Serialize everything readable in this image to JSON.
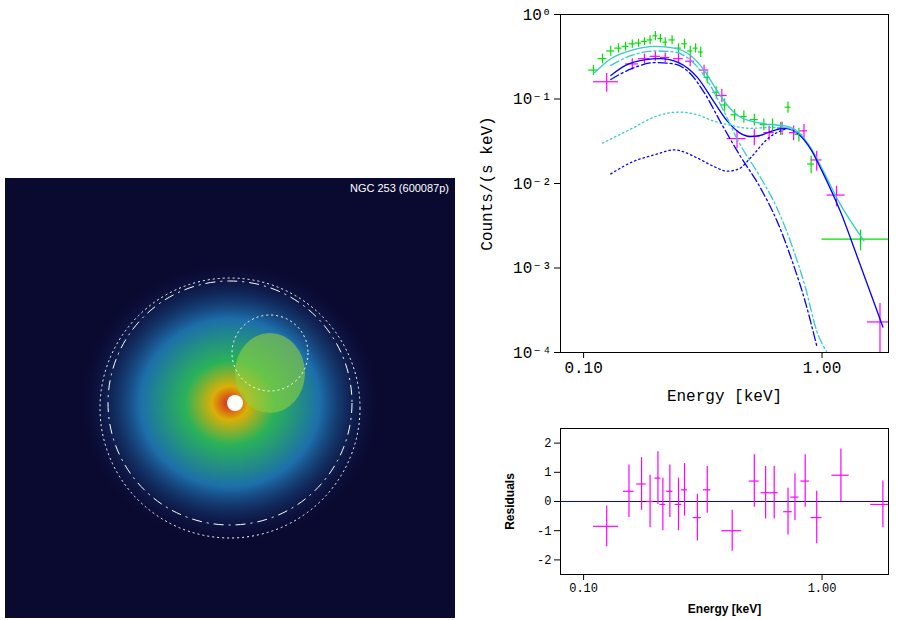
{
  "chart_data": [
    {
      "type": "image",
      "title": "NGC 253 (600087p)"
    },
    {
      "type": "line",
      "xlabel": "Energy [keV]",
      "ylabel": "Counts/(s keV)",
      "log": true,
      "xlim": [
        0.08,
        1.9
      ],
      "ylim": [
        0.0001,
        1
      ],
      "xticks": [
        {
          "value": 0.1,
          "label": "0.10"
        },
        {
          "value": 1,
          "label": "1.00"
        }
      ],
      "yticks": [
        {
          "value": 0.0001,
          "label": "10⁻⁴"
        },
        {
          "value": 0.001,
          "label": "10⁻³"
        },
        {
          "value": 0.01,
          "label": "10⁻²"
        },
        {
          "value": 0.1,
          "label": "10⁻¹"
        },
        {
          "value": 1,
          "label": "10⁰"
        }
      ],
      "series": [
        {
          "type": "scatter",
          "color": "#00e000",
          "x": [
            0.11,
            0.12,
            0.13,
            0.14,
            0.15,
            0.16,
            0.17,
            0.18,
            0.19,
            0.2,
            0.21,
            0.22,
            0.235,
            0.25,
            0.265,
            0.28,
            0.295,
            0.31,
            0.33,
            0.36,
            0.39,
            0.43,
            0.47,
            0.52,
            0.57,
            0.62,
            0.67,
            0.72,
            0.8,
            0.9,
            1.45
          ],
          "values": [
            0.22,
            0.3,
            0.37,
            0.4,
            0.42,
            0.45,
            0.46,
            0.48,
            0.5,
            0.56,
            0.52,
            0.47,
            0.5,
            0.4,
            0.45,
            0.37,
            0.4,
            0.36,
            0.18,
            0.12,
            0.085,
            0.065,
            0.062,
            0.057,
            0.05,
            0.05,
            0.045,
            0.08,
            0.038,
            0.017,
            0.0022
          ],
          "xerr": [
            0.005,
            0.005,
            0.005,
            0.005,
            0.005,
            0.005,
            0.005,
            0.005,
            0.005,
            0.005,
            0.005,
            0.005,
            0.007,
            0.007,
            0.007,
            0.007,
            0.007,
            0.007,
            0.01,
            0.012,
            0.012,
            0.015,
            0.015,
            0.02,
            0.02,
            0.02,
            0.02,
            0.02,
            0.03,
            0.03,
            0.45
          ],
          "yerr": [
            0.03,
            0.04,
            0.05,
            0.05,
            0.05,
            0.05,
            0.05,
            0.05,
            0.06,
            0.07,
            0.06,
            0.06,
            0.06,
            0.05,
            0.06,
            0.05,
            0.05,
            0.05,
            0.03,
            0.02,
            0.015,
            0.01,
            0.01,
            0.009,
            0.008,
            0.008,
            0.008,
            0.012,
            0.007,
            0.004,
            0.0006
          ]
        },
        {
          "type": "scatter",
          "color": "#ff00ff",
          "x": [
            0.125,
            0.16,
            0.18,
            0.2,
            0.22,
            0.25,
            0.28,
            0.32,
            0.38,
            0.44,
            0.52,
            0.6,
            0.68,
            0.76,
            0.84,
            0.95,
            1.15,
            1.75
          ],
          "values": [
            0.16,
            0.26,
            0.3,
            0.32,
            0.31,
            0.3,
            0.28,
            0.22,
            0.11,
            0.034,
            0.036,
            0.04,
            0.045,
            0.04,
            0.042,
            0.019,
            0.0073,
            0.00023
          ],
          "xerr": [
            0.015,
            0.01,
            0.01,
            0.01,
            0.01,
            0.012,
            0.012,
            0.015,
            0.02,
            0.04,
            0.03,
            0.03,
            0.03,
            0.03,
            0.03,
            0.05,
            0.1,
            0.2
          ],
          "yerr": [
            0.04,
            0.04,
            0.04,
            0.04,
            0.04,
            0.04,
            0.04,
            0.03,
            0.02,
            0.008,
            0.008,
            0.008,
            0.008,
            0.008,
            0.008,
            0.005,
            0.002,
            0.00015
          ]
        },
        {
          "type": "line",
          "color": "#33cccc",
          "line_style": "solid",
          "x": [
            0.11,
            0.13,
            0.16,
            0.2,
            0.24,
            0.28,
            0.32,
            0.36,
            0.4,
            0.45,
            0.5,
            0.6,
            0.7,
            0.8,
            0.9,
            1.0,
            1.2,
            1.5
          ],
          "values": [
            0.2,
            0.3,
            0.38,
            0.42,
            0.4,
            0.33,
            0.22,
            0.13,
            0.085,
            0.062,
            0.055,
            0.05,
            0.048,
            0.04,
            0.026,
            0.015,
            0.0055,
            0.0021
          ]
        },
        {
          "type": "line",
          "color": "#0000ff",
          "line_style": "solid",
          "x": [
            0.13,
            0.15,
            0.18,
            0.21,
            0.25,
            0.3,
            0.35,
            0.4,
            0.45,
            0.5,
            0.55,
            0.62,
            0.7,
            0.8,
            0.9,
            1.0,
            1.2,
            1.4,
            1.6,
            1.8
          ],
          "values": [
            0.19,
            0.25,
            0.29,
            0.3,
            0.27,
            0.18,
            0.095,
            0.055,
            0.04,
            0.036,
            0.037,
            0.042,
            0.045,
            0.038,
            0.025,
            0.014,
            0.0045,
            0.0014,
            0.0005,
            0.0002
          ]
        },
        {
          "type": "line",
          "color": "#33cccc",
          "line_style": "dotted",
          "x": [
            0.12,
            0.16,
            0.2,
            0.25,
            0.3,
            0.35,
            0.4,
            0.5,
            0.6,
            0.7,
            0.8
          ],
          "values": [
            0.03,
            0.045,
            0.062,
            0.07,
            0.065,
            0.055,
            0.05,
            0.045,
            0.046,
            0.046,
            0.038
          ]
        },
        {
          "type": "line",
          "color": "#0000ff",
          "line_style": "dotted",
          "x": [
            0.13,
            0.16,
            0.2,
            0.24,
            0.3,
            0.35,
            0.4,
            0.45,
            0.5,
            0.6,
            0.7
          ],
          "values": [
            0.013,
            0.018,
            0.022,
            0.025,
            0.02,
            0.016,
            0.014,
            0.015,
            0.02,
            0.035,
            0.044
          ]
        },
        {
          "type": "line",
          "color": "#0000ff",
          "line_style": "dashdot",
          "x": [
            0.13,
            0.16,
            0.2,
            0.24,
            0.28,
            0.32,
            0.38,
            0.45,
            0.55,
            0.65,
            0.75,
            0.85,
            0.95
          ],
          "values": [
            0.17,
            0.23,
            0.27,
            0.26,
            0.2,
            0.12,
            0.05,
            0.022,
            0.009,
            0.0035,
            0.0012,
            0.0004,
            0.00012
          ]
        },
        {
          "type": "line",
          "color": "#33cccc",
          "line_style": "dashdot",
          "x": [
            0.13,
            0.16,
            0.2,
            0.24,
            0.28,
            0.32,
            0.38,
            0.45,
            0.55,
            0.65,
            0.75,
            0.85,
            0.95,
            1.05
          ],
          "values": [
            0.25,
            0.33,
            0.37,
            0.36,
            0.29,
            0.19,
            0.08,
            0.03,
            0.012,
            0.005,
            0.0018,
            0.0006,
            0.00018,
            0.0001
          ]
        }
      ]
    },
    {
      "type": "scatter",
      "xlabel": "Energy [keV]",
      "ylabel": "Residuals",
      "log": "x",
      "xlim": [
        0.08,
        1.9
      ],
      "ylim": [
        -2.5,
        2.5
      ],
      "xticks": [
        {
          "value": 0.1,
          "label": "0.10"
        },
        {
          "value": 1,
          "label": "1.00"
        }
      ],
      "yticks": [
        -2,
        -1,
        0,
        1,
        2
      ],
      "reference_line": {
        "y": 0,
        "color": "#0000ff"
      },
      "series": [
        {
          "type": "scatter",
          "color": "#ff00ff",
          "x": [
            0.125,
            0.155,
            0.175,
            0.19,
            0.205,
            0.215,
            0.23,
            0.25,
            0.265,
            0.3,
            0.33,
            0.42,
            0.52,
            0.58,
            0.63,
            0.72,
            0.77,
            0.85,
            0.95,
            1.2,
            1.8
          ],
          "values": [
            -0.85,
            0.35,
            0.6,
            0.0,
            0.8,
            -0.1,
            0.35,
            -0.1,
            0.4,
            -0.55,
            0.4,
            -1.0,
            0.7,
            0.3,
            0.3,
            -0.35,
            0.15,
            0.7,
            -0.55,
            0.9,
            -0.1
          ],
          "xerr": [
            0.015,
            0.008,
            0.008,
            0.006,
            0.006,
            0.006,
            0.007,
            0.008,
            0.008,
            0.012,
            0.012,
            0.04,
            0.025,
            0.025,
            0.025,
            0.03,
            0.03,
            0.035,
            0.05,
            0.1,
            0.2
          ],
          "yerr": [
            0.7,
            0.9,
            0.9,
            0.9,
            0.9,
            0.9,
            0.9,
            0.9,
            0.9,
            0.8,
            0.8,
            0.7,
            0.9,
            0.9,
            0.9,
            0.8,
            0.8,
            0.9,
            0.9,
            0.9,
            0.8
          ]
        }
      ]
    }
  ]
}
